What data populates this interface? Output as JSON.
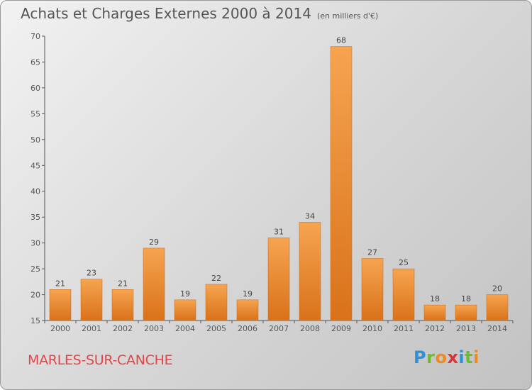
{
  "header": {
    "title": "Achats et Charges Externes 2000 à 2014",
    "subtitle": "(en milliers d'€)"
  },
  "footer": {
    "commune": "MARLES-SUR-CANCHE",
    "logo_letters": [
      "P",
      "r",
      "o",
      "x",
      "i",
      "t",
      "i"
    ],
    "logo_colors": [
      "#2f8fd8",
      "#6dbb2f",
      "#f08a1c",
      "#d9343a",
      "#2f8fd8",
      "#6dbb2f",
      "#f08a1c"
    ]
  },
  "colors": {
    "bar_top": "#f6a450",
    "bar_bottom": "#d9721a",
    "bar_stroke": "#c8681a"
  },
  "chart_data": {
    "type": "bar",
    "categories": [
      "2000",
      "2001",
      "2002",
      "2003",
      "2004",
      "2005",
      "2006",
      "2007",
      "2008",
      "2009",
      "2010",
      "2011",
      "2012",
      "2013",
      "2014"
    ],
    "values": [
      21,
      23,
      21,
      29,
      19,
      22,
      19,
      31,
      34,
      68,
      27,
      25,
      18,
      18,
      20
    ],
    "ylim": [
      15,
      70
    ],
    "yticks": [
      15,
      20,
      25,
      30,
      35,
      40,
      45,
      50,
      55,
      60,
      65,
      70
    ],
    "grid": false
  }
}
